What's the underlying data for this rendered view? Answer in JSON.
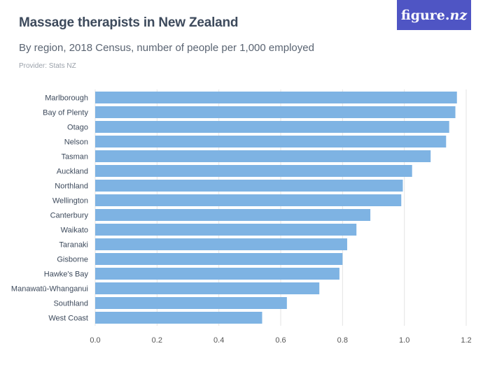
{
  "header": {
    "title": "Massage therapists in New Zealand",
    "subtitle": "By region, 2018 Census, number of people per 1,000 employed",
    "provider": "Provider: Stats NZ"
  },
  "logo": {
    "text_main": "figure.",
    "text_accent": "nz"
  },
  "colors": {
    "bar": "#7eb3e3",
    "grid": "#e3e3e3",
    "axis_text": "#555555",
    "logo_bg": "#4f55c4"
  },
  "chart_data": {
    "type": "bar",
    "orientation": "horizontal",
    "categories": [
      "Marlborough",
      "Bay of Plenty",
      "Otago",
      "Nelson",
      "Tasman",
      "Auckland",
      "Northland",
      "Wellington",
      "Canterbury",
      "Waikato",
      "Taranaki",
      "Gisborne",
      "Hawke's Bay",
      "Manawatū-Whanganui",
      "Southland",
      "West Coast"
    ],
    "values": [
      1.17,
      1.165,
      1.145,
      1.135,
      1.085,
      1.025,
      0.995,
      0.99,
      0.89,
      0.845,
      0.815,
      0.8,
      0.79,
      0.725,
      0.62,
      0.54
    ],
    "xlim": [
      0,
      1.2
    ],
    "xticks": [
      "0.0",
      "0.2",
      "0.4",
      "0.6",
      "0.8",
      "1.0",
      "1.2"
    ],
    "xtick_values": [
      0,
      0.2,
      0.4,
      0.6,
      0.8,
      1.0,
      1.2
    ],
    "grid": true
  }
}
